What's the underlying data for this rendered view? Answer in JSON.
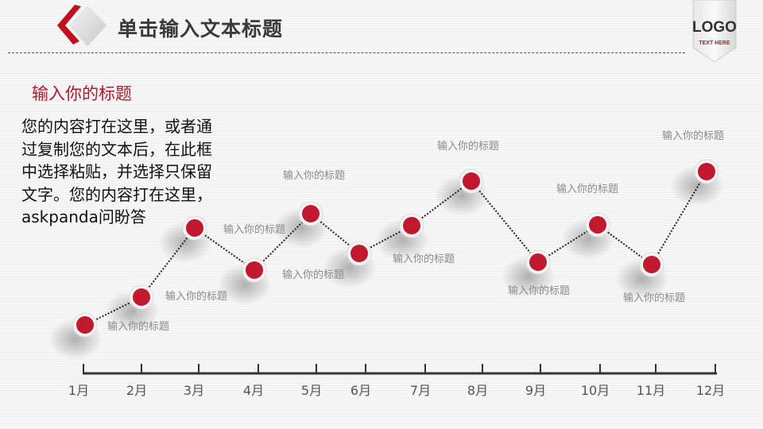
{
  "header": {
    "title": "单击输入文本标题",
    "logo_text": "LOGO",
    "logo_subtext": "TEXT HERE"
  },
  "content": {
    "subtitle": "输入你的标题",
    "body": "您的内容打在这里，或者通过复制您的文本后，在此框中选择粘贴，并选择只保留文字。您的内容打在这里，askpanda问盼答"
  },
  "colors": {
    "accent": "#c0182f",
    "text": "#3a3a3a",
    "axis": "#333333"
  },
  "chart_data": {
    "type": "line",
    "title": "",
    "xlabel": "",
    "ylabel": "",
    "categories": [
      "1月",
      "2月",
      "3月",
      "4月",
      "5月",
      "6月",
      "7月",
      "8月",
      "9月",
      "10月",
      "11月",
      "12月"
    ],
    "values": [
      61,
      96,
      183,
      130,
      201,
      151,
      186,
      242,
      140,
      187,
      137,
      254
    ],
    "ylim": [
      0,
      260
    ],
    "y_axis_shown": false,
    "grid": false,
    "point_labels": [
      "输入你的标题",
      "输入你的标题",
      "输入你的标题",
      "输入你的标题",
      "输入你的标题",
      "",
      "输入你的标题",
      "输入你的标题",
      "输入你的标题",
      "输入你的标题",
      "输入你的标题",
      "输入你的标题"
    ]
  }
}
